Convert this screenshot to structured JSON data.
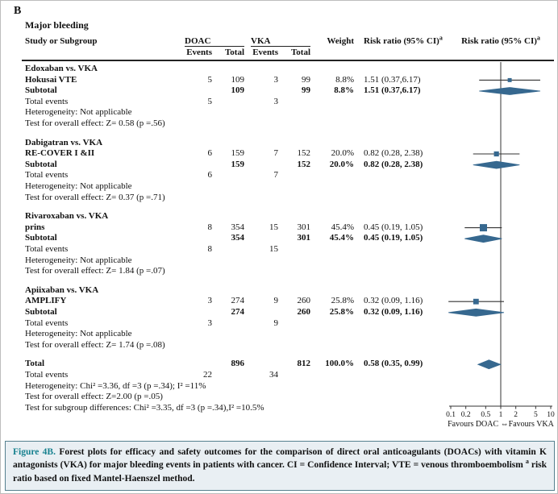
{
  "panel_label": "B",
  "title": "Major bleeding",
  "header": {
    "study_col": "Study or Subgroup",
    "doac": "DOAC",
    "vka": "VKA",
    "events": "Events",
    "total": "Total",
    "weight": "Weight",
    "risk_ratio": "Risk ratio (95% CI)",
    "sup": "a"
  },
  "labels": {
    "subtotal": "Subtotal",
    "total_events": "Total events",
    "total": "Total"
  },
  "groups": [
    {
      "name": "Edoxaban vs. VKA",
      "studies": [
        {
          "name": "Hokusai VTE",
          "doac_events": "5",
          "doac_total": "109",
          "vka_events": "3",
          "vka_total": "99",
          "weight": "8.8%",
          "rr_text": "1.51 (0.37,6.17)",
          "rr": 1.51,
          "lo": 0.37,
          "hi": 6.17,
          "weight_val": 8.8
        }
      ],
      "subtotal": {
        "doac_total": "109",
        "vka_total": "99",
        "weight": "8.8%",
        "rr_text": "1.51 (0.37,6.17)",
        "rr": 1.51,
        "lo": 0.37,
        "hi": 6.17
      },
      "total_events_doac": "5",
      "total_events_vka": "3",
      "heterogeneity": "Heterogeneity: Not applicable",
      "overall_effect": "Test for overall effect: Z= 0.58 (p =.56)"
    },
    {
      "name": "Dabigatran vs. VKA",
      "studies": [
        {
          "name": "RE-COVER I &II",
          "doac_events": "6",
          "doac_total": "159",
          "vka_events": "7",
          "vka_total": "152",
          "weight": "20.0%",
          "rr_text": "0.82 (0.28, 2.38)",
          "rr": 0.82,
          "lo": 0.28,
          "hi": 2.38,
          "weight_val": 20.0
        }
      ],
      "subtotal": {
        "doac_total": "159",
        "vka_total": "152",
        "weight": "20.0%",
        "rr_text": "0.82 (0.28, 2.38)",
        "rr": 0.82,
        "lo": 0.28,
        "hi": 2.38
      },
      "total_events_doac": "6",
      "total_events_vka": "7",
      "heterogeneity": "Heterogeneity: Not applicable",
      "overall_effect": "Test for overall effect: Z= 0.37 (p =.71)"
    },
    {
      "name": "Rivaroxaban vs. VKA",
      "studies": [
        {
          "name": "prins",
          "doac_events": "8",
          "doac_total": "354",
          "vka_events": "15",
          "vka_total": "301",
          "weight": "45.4%",
          "rr_text": "0.45 (0.19, 1.05)",
          "rr": 0.45,
          "lo": 0.19,
          "hi": 1.05,
          "weight_val": 45.4
        }
      ],
      "subtotal": {
        "doac_total": "354",
        "vka_total": "301",
        "weight": "45.4%",
        "rr_text": "0.45 (0.19, 1.05)",
        "rr": 0.45,
        "lo": 0.19,
        "hi": 1.05
      },
      "total_events_doac": "8",
      "total_events_vka": "15",
      "heterogeneity": "Heterogeneity: Not applicable",
      "overall_effect": "Test for overall effect: Z= 1.84 (p =.07)"
    },
    {
      "name": "Apiixaban vs. VKA",
      "studies": [
        {
          "name": "AMPLIFY",
          "doac_events": "3",
          "doac_total": "274",
          "vka_events": "9",
          "vka_total": "260",
          "weight": "25.8%",
          "rr_text": "0.32 (0.09, 1.16)",
          "rr": 0.32,
          "lo": 0.09,
          "hi": 1.16,
          "weight_val": 25.8
        }
      ],
      "subtotal": {
        "doac_total": "274",
        "vka_total": "260",
        "weight": "25.8%",
        "rr_text": "0.32 (0.09, 1.16)",
        "rr": 0.32,
        "lo": 0.09,
        "hi": 1.16
      },
      "total_events_doac": "3",
      "total_events_vka": "9",
      "heterogeneity": "Heterogeneity: Not applicable",
      "overall_effect": "Test for overall effect: Z= 1.74 (p =.08)"
    }
  ],
  "total_block": {
    "name": "Total",
    "doac_total": "896",
    "vka_total": "812",
    "weight": "100.0%",
    "rr_text": "0.58 (0.35, 0.99)",
    "rr": 0.58,
    "lo": 0.35,
    "hi": 0.99,
    "total_events_doac": "22",
    "total_events_vka": "34",
    "heterogeneity": "Heterogeneity: Chi² =3.36, df =3 (p =.34); I² =11%",
    "overall_effect": "Test for overall effect: Z=2.00 (p =.05)",
    "subgroup_differences": "Test for subgroup differences: Chi² =3.35, df =3 (p =.34),I² =10.5%"
  },
  "axis": {
    "ticks": [
      "0.1",
      "0.2",
      "0.5",
      "1",
      "2",
      "5",
      "10"
    ],
    "tick_values": [
      0.1,
      0.2,
      0.5,
      1,
      2,
      5,
      10
    ],
    "min": 0.1,
    "max": 10,
    "favours_left": "Favours DOAC",
    "favours_right": "Favours VKA",
    "arrow": "⇔"
  },
  "caption": {
    "label": "Figure 4B.",
    "text": "Forest plots for efficacy and safety outcomes for the comparison of direct oral anticoagulants (DOACs) with vitamin K antagonists (VKA) for major bleeding events in patients with cancer. CI = Confidence Interval; VTE = venous thromboembolism",
    "footnote_marker": "a",
    "footnote": "risk ratio based on fixed Mantel-Haenszel method."
  },
  "colors": {
    "marker": "#36688f",
    "ci_line": "#333333",
    "axis": "#333333",
    "caption_border": "#56808f",
    "caption_bg": "#e9eff3",
    "caption_label": "#17818f"
  },
  "chart_data": {
    "type": "scatter",
    "subtype": "forest-plot",
    "title": "Major bleeding",
    "x_scale": "log",
    "x_range": [
      0.1,
      10
    ],
    "x_ticks": [
      0.1,
      0.2,
      0.5,
      1,
      2,
      5,
      10
    ],
    "reference_line": 1,
    "x_label_left": "Favours DOAC",
    "x_label_right": "Favours VKA",
    "studies": [
      {
        "group": "Edoxaban vs. VKA",
        "study": "Hokusai VTE",
        "doac_events": 5,
        "doac_total": 109,
        "vka_events": 3,
        "vka_total": 99,
        "weight_pct": 8.8,
        "rr": 1.51,
        "ci_low": 0.37,
        "ci_high": 6.17
      },
      {
        "group": "Dabigatran vs. VKA",
        "study": "RE-COVER I &II",
        "doac_events": 6,
        "doac_total": 159,
        "vka_events": 7,
        "vka_total": 152,
        "weight_pct": 20.0,
        "rr": 0.82,
        "ci_low": 0.28,
        "ci_high": 2.38
      },
      {
        "group": "Rivaroxaban vs. VKA",
        "study": "prins",
        "doac_events": 8,
        "doac_total": 354,
        "vka_events": 15,
        "vka_total": 301,
        "weight_pct": 45.4,
        "rr": 0.45,
        "ci_low": 0.19,
        "ci_high": 1.05
      },
      {
        "group": "Apiixaban vs. VKA",
        "study": "AMPLIFY",
        "doac_events": 3,
        "doac_total": 274,
        "vka_events": 9,
        "vka_total": 260,
        "weight_pct": 25.8,
        "rr": 0.32,
        "ci_low": 0.09,
        "ci_high": 1.16
      }
    ],
    "subtotals": [
      {
        "group": "Edoxaban vs. VKA",
        "rr": 1.51,
        "ci_low": 0.37,
        "ci_high": 6.17,
        "weight_pct": 8.8
      },
      {
        "group": "Dabigatran vs. VKA",
        "rr": 0.82,
        "ci_low": 0.28,
        "ci_high": 2.38,
        "weight_pct": 20.0
      },
      {
        "group": "Rivaroxaban vs. VKA",
        "rr": 0.45,
        "ci_low": 0.19,
        "ci_high": 1.05,
        "weight_pct": 45.4
      },
      {
        "group": "Apiixaban vs. VKA",
        "rr": 0.32,
        "ci_low": 0.09,
        "ci_high": 1.16,
        "weight_pct": 25.8
      }
    ],
    "overall": {
      "rr": 0.58,
      "ci_low": 0.35,
      "ci_high": 0.99,
      "doac_total": 896,
      "vka_total": 812,
      "doac_events": 22,
      "vka_events": 34,
      "weight_pct": 100.0
    }
  }
}
